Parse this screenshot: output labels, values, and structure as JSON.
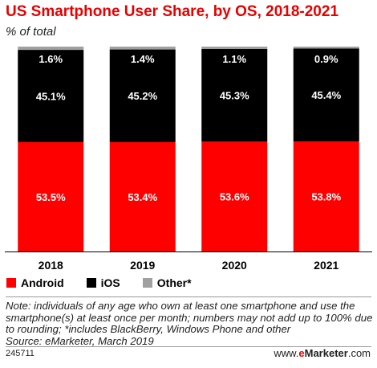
{
  "header": {
    "title": "US Smartphone User Share, by OS, 2018-2021",
    "subtitle": "% of total"
  },
  "chart_data": {
    "type": "bar",
    "stacked": true,
    "categories": [
      "2018",
      "2019",
      "2020",
      "2021"
    ],
    "series": [
      {
        "name": "Android",
        "values": [
          53.5,
          53.4,
          53.6,
          53.8
        ],
        "labels": [
          "53.5%",
          "53.4%",
          "53.6%",
          "53.8%"
        ],
        "color": "#ff0000",
        "label_color": "#ffffff"
      },
      {
        "name": "iOS",
        "values": [
          45.1,
          45.2,
          45.3,
          45.4
        ],
        "labels": [
          "45.1%",
          "45.2%",
          "45.3%",
          "45.4%"
        ],
        "color": "#000000",
        "label_color": "#ffffff"
      },
      {
        "name": "Other*",
        "values": [
          1.6,
          1.4,
          1.1,
          0.9
        ],
        "labels": [
          "1.6%",
          "1.4%",
          "1.1%",
          "0.9%"
        ],
        "color": "#a0a0a0",
        "label_color": "#ffffff"
      }
    ],
    "ylim": [
      0,
      100
    ],
    "grid": false,
    "legend_position": "bottom-left"
  },
  "footer": {
    "note": "Note: individuals of any age who own at least one smartphone and use the smartphone(s) at least once per month; numbers may not add up to 100% due to rounding; *includes BlackBerry, Windows Phone and other",
    "source": "Source: eMarketer, March 2019",
    "chart_id": "245711",
    "brand_prefix": "www.",
    "brand_e": "e",
    "brand_rest": "Marketer",
    "brand_suffix": ".com"
  }
}
